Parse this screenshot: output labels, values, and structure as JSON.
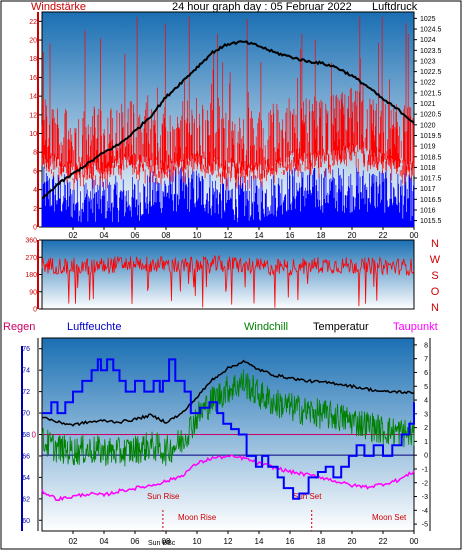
{
  "title": "24 hour graph day : 05 Februar 2022",
  "colors": {
    "frame": "#000000",
    "bg_top": "#1a6fb3",
    "bg_bottom": "#ffffff",
    "wind": "#ff0000",
    "gust": "#0000ff",
    "pressure": "#000000",
    "humidity": "#0000ff",
    "windchill": "#008000",
    "temperature": "#000000",
    "dewpoint": "#ff00ff",
    "axis_red": "#cc0000",
    "axis_blue": "#0000aa",
    "zero_line": "#cc0066"
  },
  "chart_data": [
    {
      "name": "wind",
      "type": "line",
      "label_left": "Windstärke",
      "label_right": "Luftdruck",
      "x_ticks": [
        "02",
        "04",
        "06",
        "08",
        "10",
        "12",
        "14",
        "16",
        "18",
        "20",
        "22",
        "00"
      ],
      "y_left_ticks": [
        "0",
        "2",
        "4",
        "6",
        "8",
        "10",
        "12",
        "14",
        "16",
        "18",
        "20",
        "22"
      ],
      "y_left_range": [
        0,
        23
      ],
      "y_right_ticks": [
        "1015.5",
        "1016",
        "1016.5",
        "1017",
        "1017.5",
        "1018",
        "1018.5",
        "1019",
        "1019.5",
        "1020",
        "1020.5",
        "1021",
        "1021.5",
        "1022",
        "1022.5",
        "1023",
        "1023.5",
        "1024",
        "1024.5",
        "1025"
      ],
      "y_right_range": [
        1015.2,
        1025.3
      ],
      "pressure": {
        "x": [
          0,
          1,
          2,
          3,
          4,
          5,
          6,
          7,
          8,
          9,
          10,
          11,
          12,
          13,
          14,
          15,
          16,
          17,
          18,
          19,
          20,
          21,
          22,
          23,
          24
        ],
        "y": [
          1016.5,
          1017.2,
          1017.7,
          1018.2,
          1018.7,
          1019.1,
          1019.7,
          1020.4,
          1021.3,
          1022.0,
          1022.7,
          1023.4,
          1023.8,
          1023.9,
          1023.7,
          1023.4,
          1023.2,
          1023.0,
          1022.9,
          1022.7,
          1022.3,
          1021.8,
          1021.2,
          1020.7,
          1020.1
        ]
      },
      "wind_level": {
        "x": [
          0,
          2,
          4,
          6,
          8,
          10,
          12,
          14,
          16,
          18,
          20,
          22,
          24
        ],
        "y": [
          9,
          8,
          8,
          9,
          8,
          9,
          8,
          8,
          9,
          9,
          10,
          9,
          8
        ]
      },
      "gust_level": {
        "x": [
          0,
          2,
          4,
          6,
          8,
          10,
          12,
          14,
          16,
          18,
          20,
          22,
          24
        ],
        "y": [
          4,
          3,
          3,
          3,
          4,
          4,
          3,
          3,
          4,
          4,
          4,
          4,
          3
        ]
      }
    },
    {
      "name": "wind-direction",
      "type": "scatter",
      "x_ticks": [],
      "y_ticks": [
        "0",
        "90",
        "180",
        "270",
        "360"
      ],
      "y_range": [
        0,
        360
      ],
      "y_right_labels": [
        "N",
        "W",
        "S",
        "O",
        "N"
      ],
      "direction_level": {
        "x": [
          0,
          3,
          6,
          9,
          12,
          15,
          18,
          21,
          24
        ],
        "y": [
          230,
          220,
          240,
          225,
          235,
          215,
          230,
          225,
          220
        ]
      }
    },
    {
      "name": "temperature-humidity",
      "type": "line",
      "series_labels": [
        "Regen",
        "Luftfeuchte",
        "Windchill",
        "Temperatur",
        "Taupunkt"
      ],
      "x_ticks": [
        "02",
        "04",
        "06",
        "08",
        "10",
        "12",
        "14",
        "16",
        "18",
        "20",
        "22",
        "00"
      ],
      "y_left_ticks": [
        "60",
        "62",
        "64",
        "66",
        "68",
        "70",
        "72",
        "74",
        "76"
      ],
      "y_left_range": [
        59,
        77
      ],
      "y_right_ticks": [
        "-5",
        "-4",
        "-3",
        "-2",
        "-1",
        "0",
        "1",
        "2",
        "3",
        "4",
        "5",
        "6",
        "7",
        "8"
      ],
      "y_right_range": [
        -5.5,
        8.5
      ],
      "rain_zero_label": "0",
      "temperature": {
        "x": [
          0,
          1,
          2,
          3,
          4,
          5,
          6,
          7,
          8,
          9,
          10,
          11,
          12,
          13,
          14,
          15,
          16,
          17,
          18,
          19,
          20,
          21,
          22,
          23,
          24
        ],
        "y": [
          2.8,
          2.4,
          2.2,
          2.4,
          2.5,
          2.4,
          2.6,
          2.9,
          2.4,
          3.0,
          4.2,
          5.5,
          6.3,
          6.8,
          6.2,
          5.8,
          5.6,
          5.4,
          5.3,
          5.2,
          5.0,
          4.8,
          4.6,
          4.6,
          4.5
        ]
      },
      "windchill": {
        "x": [
          0,
          1,
          2,
          3,
          4,
          5,
          6,
          7,
          8,
          9,
          10,
          11,
          12,
          13,
          14,
          15,
          16,
          17,
          18,
          19,
          20,
          21,
          22,
          23,
          24
        ],
        "y": [
          1.0,
          0.5,
          0.3,
          0.4,
          0.3,
          0.2,
          0.4,
          0.7,
          0.3,
          1.0,
          2.8,
          4.0,
          4.8,
          5.3,
          4.4,
          3.8,
          3.5,
          3.2,
          3.0,
          2.8,
          2.5,
          2.2,
          1.8,
          1.7,
          1.5
        ]
      },
      "dewpoint": {
        "x": [
          0,
          1,
          2,
          3,
          4,
          5,
          6,
          7,
          8,
          9,
          10,
          11,
          12,
          13,
          14,
          15,
          16,
          17,
          18,
          19,
          20,
          21,
          22,
          23,
          24
        ],
        "y": [
          -2.6,
          -3.2,
          -3.0,
          -2.8,
          -2.9,
          -2.6,
          -2.4,
          -2.2,
          -1.9,
          -1.5,
          -0.6,
          -0.2,
          -0.1,
          -0.2,
          -0.6,
          -0.9,
          -1.2,
          -1.4,
          -1.6,
          -1.9,
          -2.2,
          -2.3,
          -2.1,
          -1.8,
          -1.2
        ]
      },
      "humidity": {
        "x": [
          0,
          0.6,
          1.0,
          1.5,
          2.0,
          2.4,
          2.6,
          3.2,
          3.6,
          3.8,
          4.2,
          4.6,
          5.0,
          5.4,
          6.0,
          6.6,
          7.2,
          7.6,
          7.8,
          8.2,
          8.6,
          9.2,
          9.6,
          10.2,
          10.8,
          11.3,
          11.7,
          12.2,
          12.7,
          13.2,
          13.8,
          14.2,
          14.6,
          15.2,
          15.6,
          16.2,
          16.6,
          17.2,
          17.8,
          18.3,
          18.8,
          19.3,
          19.8,
          20.3,
          20.8,
          21.4,
          22.0,
          22.6,
          23.2,
          23.7,
          24.0
        ],
        "y": [
          70,
          71,
          70,
          71,
          72,
          72,
          73,
          74,
          75,
          74,
          75,
          74,
          73,
          72,
          73,
          72,
          73,
          72,
          73,
          75,
          73,
          72,
          70,
          70.5,
          71,
          70,
          69,
          68.5,
          68,
          66,
          65,
          66,
          65,
          64,
          63,
          62,
          62.5,
          64,
          64.5,
          65,
          64,
          65,
          66,
          67,
          66,
          67,
          66,
          67,
          68,
          69,
          71
        ]
      }
    }
  ],
  "annotations": {
    "sun_rise": "Sun Rise",
    "sun_set": "Sun Set",
    "moon_rise": "Moon Rise",
    "moon_set": "Moon Set",
    "sun_bbc": "Sun BBc"
  }
}
